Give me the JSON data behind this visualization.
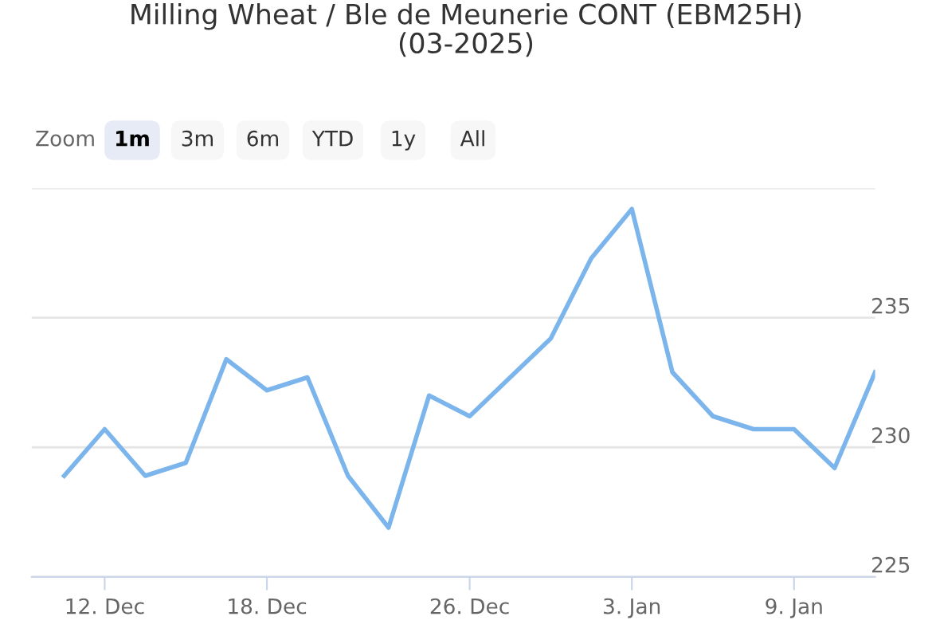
{
  "chart_data": {
    "type": "line",
    "title": "Milling Wheat / Ble de Meunerie CONT (EBM25H)\n(03-2025)",
    "annotations": [
      "Zoom",
      "1m",
      "3m",
      "6m",
      "YTD",
      "1y",
      "All"
    ],
    "categories": [
      null,
      "12. Dec",
      null,
      null,
      null,
      "18. Dec",
      null,
      null,
      null,
      null,
      "26. Dec",
      null,
      null,
      null,
      "3. Jan",
      null,
      null,
      null,
      "9. Jan",
      null,
      null
    ],
    "series": [
      {
        "color": "#7cb5ec",
        "values": [
          228.9,
          230.7,
          228.9,
          229.4,
          233.4,
          232.2,
          232.7,
          228.9,
          226.9,
          232.0,
          231.2,
          232.7,
          234.2,
          237.3,
          239.2,
          232.9,
          231.2,
          230.7,
          230.7,
          229.2,
          232.9
        ]
      }
    ],
    "ylim": [
      225,
      240
    ],
    "yticks": [
      225,
      230,
      235,
      {
        "value": 240,
        "label": null
      }
    ],
    "grid": "y",
    "marker": "none",
    "line_style": "solid",
    "legend": false
  }
}
